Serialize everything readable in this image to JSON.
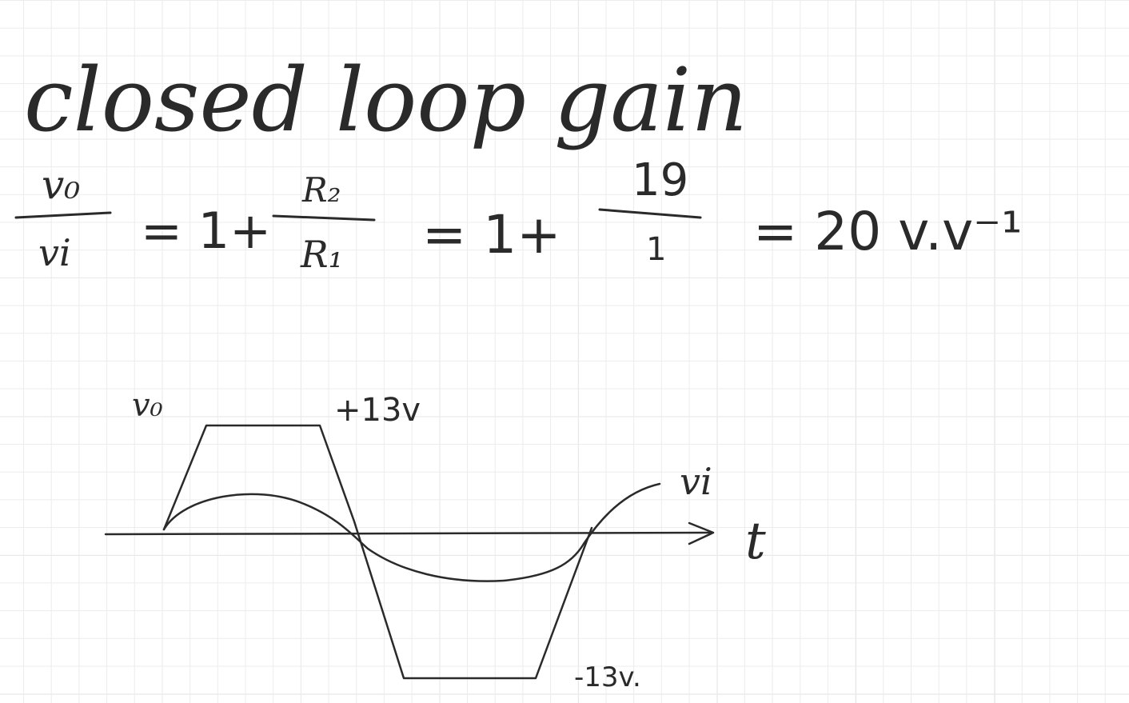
{
  "title": "closed loop gain",
  "equation": {
    "numerator_left": "v₀",
    "denominator_left": "vi",
    "step1": "= 1+",
    "numerator_r": "R₂",
    "denominator_r": "R₁",
    "step2": "= 1+",
    "numerator_num": "19",
    "denominator_num": "1",
    "result": "= 20 v.v⁻¹"
  },
  "sketch": {
    "vo_label": "v₀",
    "vi_label": "vi",
    "t_label": "t",
    "pos_sat_label": "+13v",
    "neg_sat_label": "-13v."
  }
}
